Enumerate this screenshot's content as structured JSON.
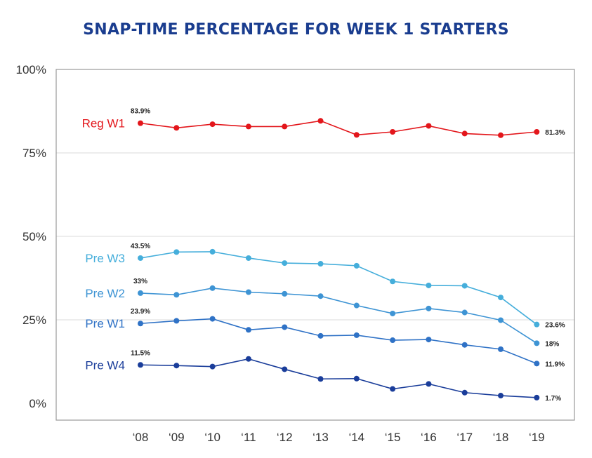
{
  "chart_data": {
    "type": "line",
    "title": "SNAP-TIME PERCENTAGE FOR WEEK 1 STARTERS",
    "xlabel": "",
    "ylabel": "",
    "categories": [
      "‘08",
      "‘09",
      "‘10",
      "‘11",
      "‘12",
      "‘13",
      "‘14",
      "‘15",
      "‘16",
      "‘17",
      "‘18",
      "‘19"
    ],
    "ylim": [
      0,
      100
    ],
    "yticks": [
      0,
      25,
      50,
      75,
      100
    ],
    "ytick_labels": [
      "0%",
      "25%",
      "50%",
      "75%",
      "100%"
    ],
    "grid": true,
    "series": [
      {
        "name": "Reg W1",
        "color": "#e3161b",
        "values": [
          83.9,
          82.5,
          83.6,
          82.9,
          82.9,
          84.6,
          80.4,
          81.3,
          83.1,
          80.8,
          80.3,
          81.3
        ],
        "first_label": "83.9%",
        "last_label": "81.3%"
      },
      {
        "name": "Pre W3",
        "color": "#45aedb",
        "values": [
          43.5,
          45.3,
          45.4,
          43.5,
          42.0,
          41.8,
          41.2,
          36.5,
          35.3,
          35.2,
          31.7,
          23.6
        ],
        "first_label": "43.5%",
        "last_label": "23.6%"
      },
      {
        "name": "Pre W2",
        "color": "#3e94d4",
        "values": [
          33.0,
          32.5,
          34.5,
          33.3,
          32.8,
          32.1,
          29.3,
          26.9,
          28.4,
          27.2,
          24.9,
          18.0
        ],
        "first_label": "33%",
        "last_label": "18%"
      },
      {
        "name": "Pre W1",
        "color": "#2f72c6",
        "values": [
          23.9,
          24.7,
          25.3,
          22.0,
          22.8,
          20.2,
          20.4,
          18.9,
          19.1,
          17.5,
          16.2,
          11.9
        ],
        "first_label": "23.9%",
        "last_label": "11.9%"
      },
      {
        "name": "Pre W4",
        "color": "#1a3d9a",
        "values": [
          11.5,
          11.3,
          11.0,
          13.3,
          10.2,
          7.3,
          7.4,
          4.3,
          5.8,
          3.2,
          2.3,
          1.7
        ],
        "first_label": "11.5%",
        "last_label": "1.7%"
      }
    ]
  }
}
